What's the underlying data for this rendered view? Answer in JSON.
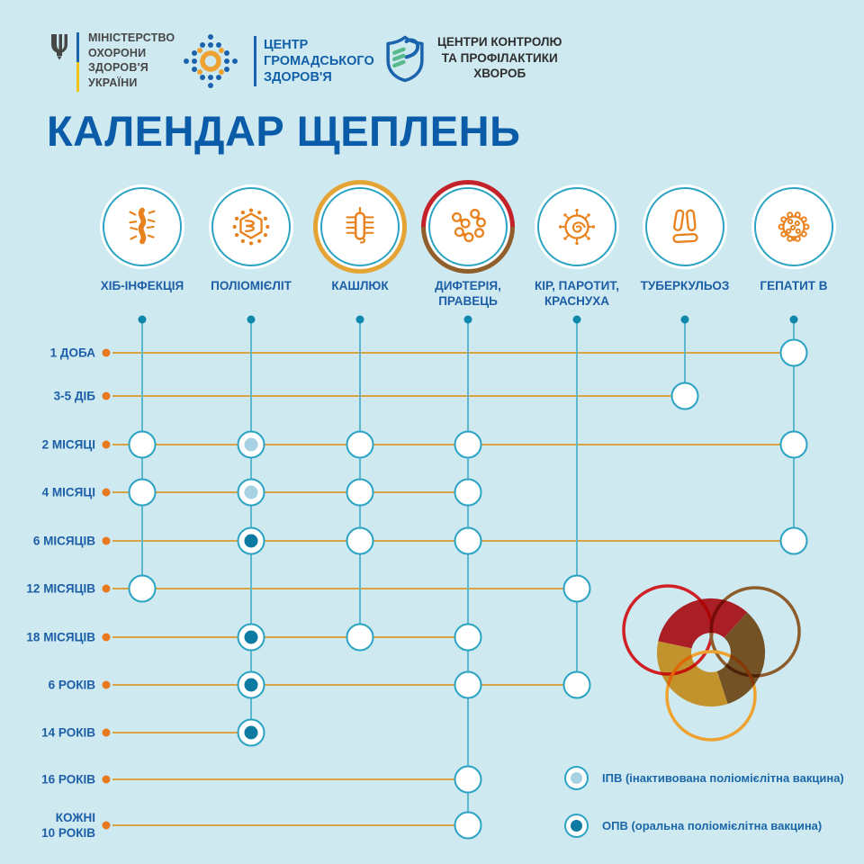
{
  "header": {
    "moz_logo": {
      "icon": "ukraine-trident-icon",
      "lines": [
        "МІНІСТЕРСТВО",
        "ОХОРОНИ",
        "ЗДОРОВ'Я",
        "УКРАЇНИ"
      ]
    },
    "phc_logo": {
      "icon": "dotted-diamond-icon",
      "lines": [
        "ЦЕНТР",
        "ГРОМАДСЬКОГО",
        "ЗДОРОВ'Я"
      ]
    },
    "cdc_logo": {
      "icon": "shield-icon",
      "lines": [
        "ЦЕНТРИ КОНТРОЛЮ",
        "ТА ПРОФІЛАКТИКИ",
        "ХВОРОБ"
      ]
    }
  },
  "title": "КАЛЕНДАР ЩЕПЛЕНЬ",
  "chart": {
    "columns": [
      {
        "label": "ХІБ-ІНФЕКЦІЯ",
        "icon": "hib-bacteria-icon",
        "ring": "none"
      },
      {
        "label": "ПОЛІОМІЄЛІТ",
        "icon": "polio-virus-icon",
        "ring": "none"
      },
      {
        "label": "КАШЛЮК",
        "icon": "pertussis-bacteria-icon",
        "ring": "orange"
      },
      {
        "label": "ДИФТЕРІЯ, ПРАВЕЦЬ",
        "icon": "diphtheria-bacteria-icon",
        "ring": "red-brown"
      },
      {
        "label": "КІР, ПАРОТИТ, КРАСНУХА",
        "icon": "measles-virus-icon",
        "ring": "none"
      },
      {
        "label": "ТУБЕРКУЛЬОЗ",
        "icon": "tuberculosis-bacteria-icon",
        "ring": "none"
      },
      {
        "label": "ГЕПАТИТ В",
        "icon": "hepatitis-virus-icon",
        "ring": "none"
      }
    ],
    "rows": [
      {
        "label": "1 ДОБА"
      },
      {
        "label": "3-5 ДІБ"
      },
      {
        "label": "2 МІСЯЦІ"
      },
      {
        "label": "4 МІСЯЦІ"
      },
      {
        "label": "6 МІСЯЦІВ"
      },
      {
        "label": "12 МІСЯЦІВ"
      },
      {
        "label": "18 МІСЯЦІВ"
      },
      {
        "label": "6 РОКІВ"
      },
      {
        "label": "14 РОКІВ"
      },
      {
        "label": "16 РОКІВ"
      },
      {
        "label": "КОЖНІ\n10 РОКІВ"
      }
    ],
    "marks": [
      {
        "row": 0,
        "col": 6,
        "type": "plain"
      },
      {
        "row": 1,
        "col": 5,
        "type": "plain"
      },
      {
        "row": 2,
        "col": 0,
        "type": "plain"
      },
      {
        "row": 2,
        "col": 1,
        "type": "ipv"
      },
      {
        "row": 2,
        "col": 2,
        "type": "plain"
      },
      {
        "row": 2,
        "col": 3,
        "type": "plain"
      },
      {
        "row": 2,
        "col": 6,
        "type": "plain"
      },
      {
        "row": 3,
        "col": 0,
        "type": "plain"
      },
      {
        "row": 3,
        "col": 1,
        "type": "ipv"
      },
      {
        "row": 3,
        "col": 2,
        "type": "plain"
      },
      {
        "row": 3,
        "col": 3,
        "type": "plain"
      },
      {
        "row": 4,
        "col": 1,
        "type": "opv"
      },
      {
        "row": 4,
        "col": 2,
        "type": "plain"
      },
      {
        "row": 4,
        "col": 3,
        "type": "plain"
      },
      {
        "row": 4,
        "col": 6,
        "type": "plain"
      },
      {
        "row": 5,
        "col": 0,
        "type": "plain"
      },
      {
        "row": 5,
        "col": 4,
        "type": "plain"
      },
      {
        "row": 6,
        "col": 1,
        "type": "opv"
      },
      {
        "row": 6,
        "col": 2,
        "type": "plain"
      },
      {
        "row": 6,
        "col": 3,
        "type": "plain"
      },
      {
        "row": 7,
        "col": 1,
        "type": "opv"
      },
      {
        "row": 7,
        "col": 3,
        "type": "plain"
      },
      {
        "row": 7,
        "col": 4,
        "type": "plain"
      },
      {
        "row": 8,
        "col": 1,
        "type": "opv"
      },
      {
        "row": 9,
        "col": 3,
        "type": "plain"
      },
      {
        "row": 10,
        "col": 3,
        "type": "plain"
      }
    ]
  },
  "legend": [
    {
      "type": "ipv",
      "label": "ІПВ (інактивована поліомієлітна вакцина)"
    },
    {
      "type": "opv",
      "label": "ОПВ (оральна поліомієлітна вакцина)"
    }
  ],
  "colors": {
    "background": "#cfe9f1",
    "title_blue": "#0a5ba8",
    "label_blue": "#1d5fa7",
    "line_orange": "#d9a342",
    "dot_orange": "#e8791f",
    "line_teal": "#5cb8cf",
    "circle_border_teal": "#2ba3c2",
    "ipv_dot": "#a6d2e3",
    "opv_dot": "#0d7aa2",
    "icon_orange": "#e8821e",
    "ring_orange": "#e3a435",
    "ring_red": "#c4222a",
    "ring_brown": "#8f5e2a",
    "deco_red": "#d02127",
    "deco_brown": "#8d5c2b",
    "deco_orange": "#eea22f"
  }
}
